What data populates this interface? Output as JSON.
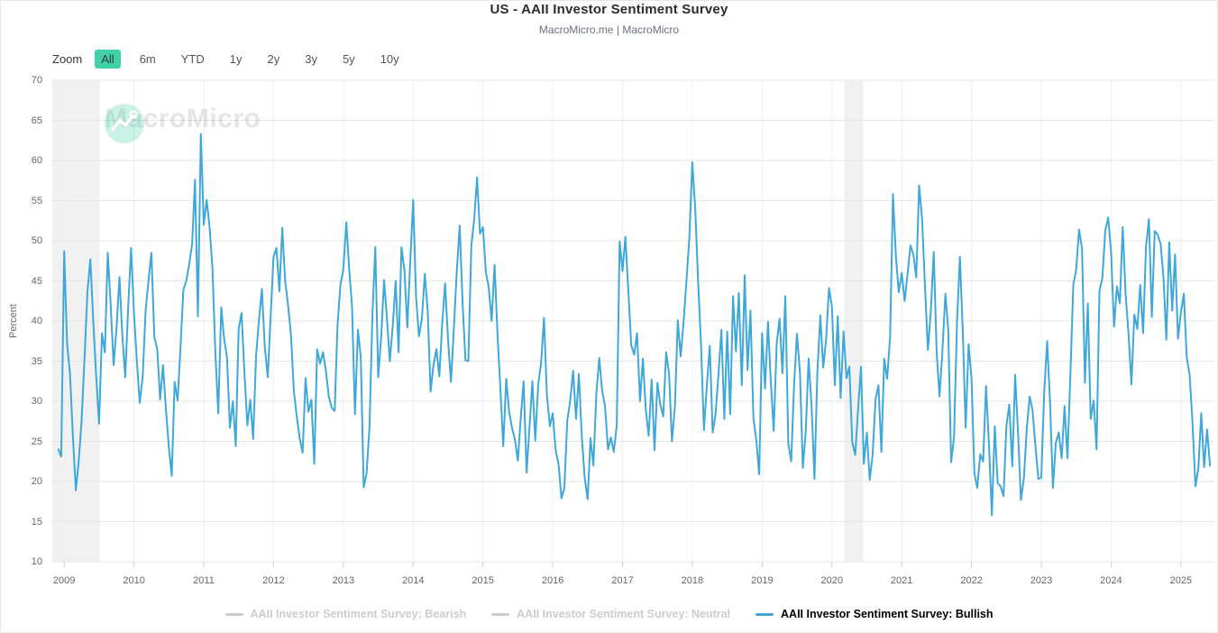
{
  "header": {
    "title": "US - AAII Investor Sentiment Survey",
    "subtitle": "MacroMicro.me | MacroMicro"
  },
  "toolbar": {
    "zoom_label": "Zoom",
    "buttons": [
      "All",
      "6m",
      "YTD",
      "1y",
      "2y",
      "3y",
      "5y",
      "10y"
    ],
    "active": "All"
  },
  "watermark": {
    "text": "MacroMicro"
  },
  "colors": {
    "line": "#3fa8d9",
    "legend_active_text": "#000000",
    "legend_disabled": "#cccccc",
    "grid_h": "#e6e6e6",
    "grid_v": "#efefef",
    "tick": "#cccccc",
    "recession_band": "#f1f1f1",
    "zoom_active_bg": "#40d1a6"
  },
  "legend": [
    {
      "label": "AAII Investor Sentiment Survey: Bearish",
      "color": "#cccccc",
      "active": false
    },
    {
      "label": "AAII Investor Sentiment Survey: Neutral",
      "color": "#cccccc",
      "active": false
    },
    {
      "label": "AAII Investor Sentiment Survey: Bullish",
      "color": "#3fa8d9",
      "active": true
    }
  ],
  "chart_data": {
    "type": "line",
    "title": "US - AAII Investor Sentiment Survey",
    "xlabel": "",
    "ylabel": "Percent",
    "ylim": [
      10,
      70
    ],
    "xlim": [
      2008.83,
      2025.48
    ],
    "y_ticks": [
      70,
      65,
      60,
      55,
      50,
      45,
      40,
      35,
      30,
      25,
      20,
      15,
      10
    ],
    "x_ticks": [
      2009,
      2010,
      2011,
      2012,
      2013,
      2014,
      2015,
      2016,
      2017,
      2018,
      2019,
      2020,
      2021,
      2022,
      2023,
      2024,
      2025
    ],
    "grid": true,
    "legend_position": "bottom",
    "recession_bands": [
      {
        "x_start": 2008.83,
        "x_end": 2009.51
      },
      {
        "x_start": 2020.18,
        "x_end": 2020.45
      }
    ],
    "series": [
      {
        "name": "AAII Investor Sentiment Survey: Bullish",
        "unit": "percent",
        "x_start": 2008.9167,
        "x_step_years": 0.0416667,
        "values": [
          24.0,
          23.1,
          48.7,
          37.2,
          33.5,
          25.8,
          18.9,
          22.5,
          27.6,
          35.2,
          43.7,
          47.7,
          40.1,
          33.3,
          27.2,
          38.5,
          36.1,
          48.5,
          42.0,
          34.5,
          39.0,
          45.5,
          38.2,
          33.0,
          41.5,
          49.1,
          41.0,
          35.0,
          29.8,
          33.1,
          41.3,
          45.0,
          48.5,
          38.0,
          36.5,
          30.2,
          34.5,
          28.9,
          24.3,
          20.7,
          32.4,
          30.1,
          36.7,
          43.9,
          45.0,
          47.1,
          49.6,
          57.6,
          40.6,
          63.3,
          52.0,
          55.1,
          51.8,
          46.5,
          36.0,
          28.5,
          41.7,
          37.8,
          35.5,
          26.7,
          30.0,
          24.4,
          39.0,
          41.0,
          33.4,
          27.0,
          30.2,
          25.3,
          35.8,
          40.2,
          44.0,
          36.8,
          33.0,
          40.6,
          48.0,
          49.1,
          43.7,
          51.6,
          45.0,
          42.0,
          38.2,
          31.2,
          28.1,
          25.4,
          23.6,
          32.9,
          28.7,
          30.2,
          22.2,
          36.5,
          34.7,
          36.1,
          33.8,
          30.6,
          29.2,
          28.8,
          39.5,
          44.5,
          46.4,
          52.3,
          46.5,
          41.8,
          28.4,
          38.9,
          35.5,
          19.3,
          21.0,
          26.9,
          40.8,
          49.2,
          33.0,
          38.0,
          45.1,
          40.3,
          35.0,
          39.5,
          45.0,
          36.1,
          49.2,
          46.3,
          39.2,
          47.3,
          55.1,
          43.0,
          38.1,
          40.2,
          45.9,
          41.3,
          31.2,
          34.5,
          36.5,
          33.1,
          39.7,
          44.7,
          37.6,
          32.4,
          39.0,
          46.1,
          51.9,
          42.2,
          35.1,
          35.0,
          49.4,
          52.7,
          57.9,
          50.9,
          51.7,
          46.1,
          44.2,
          40.0,
          47.0,
          38.4,
          31.6,
          24.4,
          32.8,
          28.7,
          26.7,
          25.2,
          22.6,
          27.9,
          32.5,
          21.1,
          26.8,
          32.5,
          25.1,
          32.1,
          34.8,
          40.4,
          30.8,
          26.9,
          28.5,
          23.9,
          22.2,
          17.9,
          19.2,
          27.6,
          30.0,
          33.8,
          27.8,
          33.4,
          25.7,
          20.4,
          17.8,
          25.4,
          22.0,
          31.0,
          35.4,
          31.3,
          29.4,
          24.0,
          25.5,
          23.7,
          27.0,
          49.9,
          46.2,
          50.5,
          43.6,
          37.0,
          35.8,
          38.5,
          30.0,
          35.3,
          29.0,
          25.7,
          32.7,
          23.9,
          32.3,
          29.6,
          28.1,
          36.1,
          33.5,
          25.0,
          29.3,
          40.1,
          35.6,
          39.8,
          45.1,
          50.5,
          59.8,
          54.1,
          44.8,
          37.0,
          26.4,
          31.9,
          36.9,
          26.1,
          28.4,
          33.5,
          38.9,
          27.8,
          38.7,
          28.4,
          43.1,
          36.2,
          43.5,
          32.0,
          45.7,
          33.9,
          41.3,
          27.9,
          25.1,
          20.9,
          38.5,
          31.6,
          39.9,
          32.4,
          26.3,
          37.2,
          40.3,
          33.5,
          43.1,
          24.7,
          22.5,
          32.1,
          38.4,
          33.6,
          21.7,
          26.1,
          35.3,
          29.4,
          20.3,
          33.6,
          40.7,
          34.2,
          37.7,
          44.1,
          41.8,
          32.0,
          40.6,
          30.4,
          38.7,
          32.9,
          34.3,
          24.9,
          23.3,
          29.0,
          34.3,
          22.2,
          26.1,
          20.2,
          23.3,
          30.2,
          32.0,
          23.7,
          35.3,
          32.8,
          38.0,
          55.8,
          48.1,
          43.6,
          46.0,
          42.5,
          45.8,
          49.4,
          48.3,
          45.4,
          56.9,
          52.7,
          44.3,
          36.4,
          41.1,
          48.6,
          36.2,
          30.6,
          36.2,
          43.4,
          38.9,
          22.4,
          25.5,
          39.8,
          48.0,
          38.8,
          26.7,
          37.1,
          32.9,
          21.0,
          19.2,
          23.4,
          22.5,
          31.9,
          24.7,
          15.8,
          26.9,
          19.8,
          19.4,
          18.2,
          26.9,
          29.6,
          21.9,
          33.3,
          26.1,
          17.7,
          20.4,
          26.6,
          30.6,
          28.9,
          24.3,
          20.3,
          20.5,
          31.0,
          37.5,
          29.9,
          19.2,
          24.8,
          26.1,
          22.9,
          29.4,
          22.9,
          33.4,
          44.5,
          46.4,
          51.4,
          49.0,
          32.3,
          42.2,
          27.8,
          30.1,
          24.0,
          43.8,
          45.3,
          51.3,
          52.9,
          48.6,
          39.3,
          44.3,
          42.2,
          51.7,
          43.2,
          38.3,
          32.1,
          40.8,
          39.0,
          44.5,
          38.5,
          49.2,
          52.7,
          40.5,
          51.2,
          50.8,
          49.6,
          45.5,
          37.7,
          49.8,
          41.3,
          48.3,
          37.8,
          41.0,
          43.4,
          35.5,
          33.3,
          27.4,
          19.4,
          21.6,
          28.5,
          21.8,
          26.5,
          22.0
        ]
      }
    ]
  }
}
